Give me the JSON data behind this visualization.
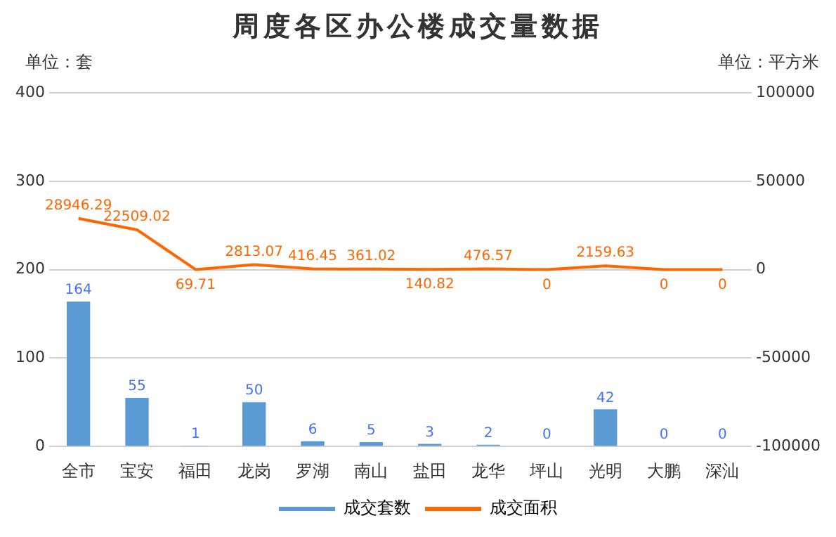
{
  "chart_data": {
    "type": "bar",
    "title": "周度各区办公楼成交量数据",
    "ylabel": "单位：套",
    "y2label": "单位：平方米",
    "categories": [
      "全市",
      "宝安",
      "福田",
      "龙岗",
      "罗湖",
      "南山",
      "盐田",
      "龙华",
      "坪山",
      "光明",
      "大鹏",
      "深汕"
    ],
    "series": [
      {
        "name": "成交套数",
        "color": "#5b9bd5",
        "values": [
          164,
          55,
          1,
          50,
          6,
          5,
          3,
          2,
          0,
          42,
          0,
          0
        ]
      },
      {
        "name": "成交面积",
        "type": "line",
        "axis": "y2",
        "color": "#ff6600",
        "values": [
          28946.29,
          22509.02,
          69.71,
          2813.07,
          416.45,
          361.02,
          140.82,
          476.57,
          0,
          2159.63,
          0,
          0
        ]
      }
    ],
    "ylim": [
      0,
      400
    ],
    "yticks": [
      0,
      100,
      200,
      300,
      400
    ],
    "y2lim": [
      -100000,
      100000
    ],
    "y2ticks": [
      -100000,
      -50000,
      0,
      50000,
      100000
    ],
    "grid": "y",
    "legend": "bottom",
    "marker": "none",
    "line_style": "solid",
    "data_labels": true
  }
}
